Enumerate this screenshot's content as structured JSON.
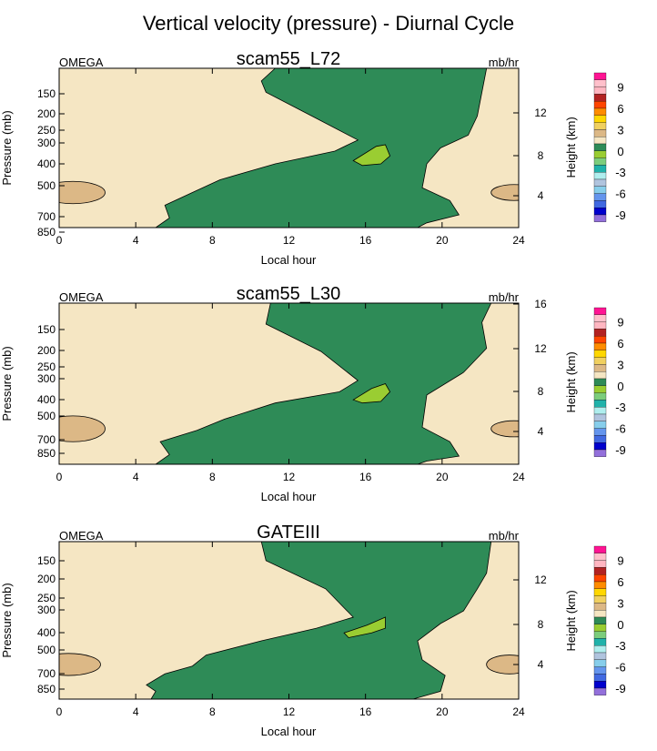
{
  "figure": {
    "title": "Vertical velocity (pressure) - Diurnal Cycle"
  },
  "colors": {
    "positive_background": "#f5e6c3",
    "negative_region": "#2e8b57",
    "strong_negative": "#9acd32",
    "weak_positive": "#dcb886"
  },
  "colorbar": {
    "label": "Height (km)",
    "levels": [
      "9",
      "6",
      "3",
      "0",
      "-3",
      "-6",
      "-9"
    ],
    "swatches": [
      "#ff1493",
      "#ffc0cb",
      "#ffb6c1",
      "#b22222",
      "#ff4500",
      "#ff8c00",
      "#ffd700",
      "#f0d060",
      "#dcb886",
      "#f5e6c3",
      "#2e8b57",
      "#9acd32",
      "#7ccd7c",
      "#20b2aa",
      "#afeeee",
      "#b0c4de",
      "#87ceeb",
      "#6495ed",
      "#4169e1",
      "#0000cd",
      "#9370db"
    ]
  },
  "chart_data": [
    {
      "type": "contour",
      "title": "scam55_L72",
      "left_label": "OMEGA",
      "units": "mb/hr",
      "xlabel": "Local hour",
      "ylabel": "Pressure (mb)",
      "right_label": "Height (km)",
      "xlim": [
        0,
        24
      ],
      "x_ticks": [
        "0",
        "4",
        "8",
        "12",
        "16",
        "20",
        "24"
      ],
      "y_ticks": [
        "150",
        "200",
        "250",
        "300",
        "400",
        "500",
        "700",
        "850"
      ],
      "y_right_ticks": [
        "4",
        "8",
        "12"
      ],
      "y_scale": "log pressure",
      "regions": [
        {
          "type": "negative",
          "hours_start": 5.2,
          "hours_end": 18.7
        },
        {
          "type": "strong_negative",
          "center_hour": 16,
          "center_pressure": 400
        },
        {
          "type": "weak_positive",
          "center_hour": 1,
          "center_pressure": 600
        },
        {
          "type": "weak_positive",
          "center_hour": 23.8,
          "center_pressure": 600
        }
      ]
    },
    {
      "type": "contour",
      "title": "scam55_L30",
      "left_label": "OMEGA",
      "units": "mb/hr",
      "xlabel": "Local hour",
      "ylabel": "Pressure (mb)",
      "right_label": "Height (km)",
      "xlim": [
        0,
        24
      ],
      "x_ticks": [
        "0",
        "4",
        "8",
        "12",
        "16",
        "20",
        "24"
      ],
      "y_ticks": [
        "150",
        "200",
        "250",
        "300",
        "400",
        "500",
        "700",
        "850"
      ],
      "y_right_ticks": [
        "4",
        "8",
        "12",
        "16"
      ],
      "y_scale": "log pressure",
      "regions": [
        {
          "type": "negative",
          "hours_start": 5.2,
          "hours_end": 18.7
        },
        {
          "type": "strong_negative",
          "center_hour": 16,
          "center_pressure": 400
        },
        {
          "type": "weak_positive",
          "center_hour": 1,
          "center_pressure": 650
        },
        {
          "type": "weak_positive",
          "center_hour": 23.8,
          "center_pressure": 650
        }
      ]
    },
    {
      "type": "contour",
      "title": "GATEIII",
      "left_label": "OMEGA",
      "units": "mb/hr",
      "xlabel": "Local hour",
      "ylabel": "Pressure (mb)",
      "right_label": "Height (km)",
      "xlim": [
        0,
        24
      ],
      "x_ticks": [
        "0",
        "4",
        "8",
        "12",
        "16",
        "20",
        "24"
      ],
      "y_ticks": [
        "150",
        "200",
        "250",
        "300",
        "400",
        "500",
        "700",
        "850"
      ],
      "y_right_ticks": [
        "4",
        "8",
        "12"
      ],
      "y_scale": "log pressure",
      "regions": [
        {
          "type": "negative",
          "hours_start": 4.8,
          "hours_end": 18.3
        },
        {
          "type": "strong_negative",
          "center_hour": 16,
          "center_pressure": 380
        },
        {
          "type": "weak_positive",
          "center_hour": 0.7,
          "center_pressure": 650
        },
        {
          "type": "weak_positive",
          "center_hour": 23.5,
          "center_pressure": 650
        }
      ]
    }
  ]
}
